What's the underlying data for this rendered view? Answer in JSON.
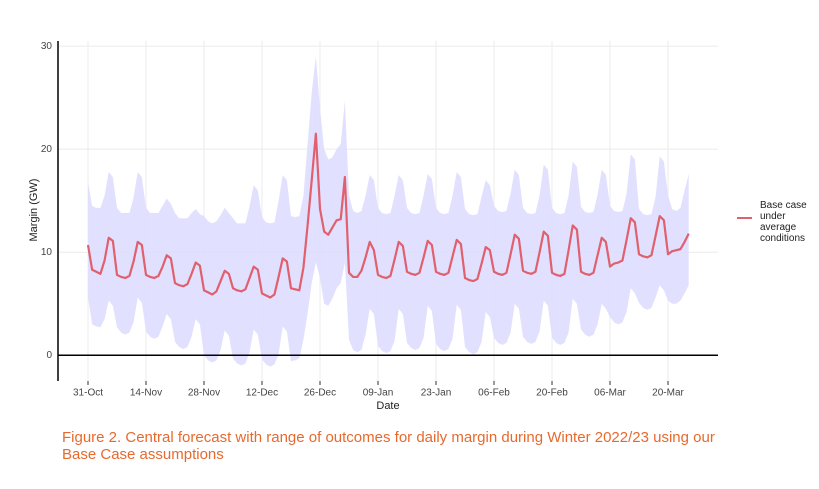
{
  "chart_data": {
    "type": "line",
    "x_label": "Date",
    "y_label": "Margin (GW)",
    "caption": "Figure 2. Central forecast with range of outcomes for daily margin during Winter 2022/23 using our Base Case assumptions",
    "x": [
      "31-Oct",
      "01-Nov",
      "02-Nov",
      "03-Nov",
      "04-Nov",
      "05-Nov",
      "06-Nov",
      "07-Nov",
      "08-Nov",
      "09-Nov",
      "10-Nov",
      "11-Nov",
      "12-Nov",
      "13-Nov",
      "14-Nov",
      "15-Nov",
      "16-Nov",
      "17-Nov",
      "18-Nov",
      "19-Nov",
      "20-Nov",
      "21-Nov",
      "22-Nov",
      "23-Nov",
      "24-Nov",
      "25-Nov",
      "26-Nov",
      "27-Nov",
      "28-Nov",
      "29-Nov",
      "30-Nov",
      "01-Dec",
      "02-Dec",
      "03-Dec",
      "04-Dec",
      "05-Dec",
      "06-Dec",
      "07-Dec",
      "08-Dec",
      "09-Dec",
      "10-Dec",
      "11-Dec",
      "12-Dec",
      "13-Dec",
      "14-Dec",
      "15-Dec",
      "16-Dec",
      "17-Dec",
      "18-Dec",
      "19-Dec",
      "20-Dec",
      "21-Dec",
      "22-Dec",
      "23-Dec",
      "24-Dec",
      "25-Dec",
      "26-Dec",
      "27-Dec",
      "28-Dec",
      "29-Dec",
      "30-Dec",
      "31-Dec",
      "01-Jan",
      "02-Jan",
      "03-Jan",
      "04-Jan",
      "05-Jan",
      "06-Jan",
      "07-Jan",
      "08-Jan",
      "09-Jan",
      "10-Jan",
      "11-Jan",
      "12-Jan",
      "13-Jan",
      "14-Jan",
      "15-Jan",
      "16-Jan",
      "17-Jan",
      "18-Jan",
      "19-Jan",
      "20-Jan",
      "21-Jan",
      "22-Jan",
      "23-Jan",
      "24-Jan",
      "25-Jan",
      "26-Jan",
      "27-Jan",
      "28-Jan",
      "29-Jan",
      "30-Jan",
      "31-Jan",
      "01-Feb",
      "02-Feb",
      "03-Feb",
      "04-Feb",
      "05-Feb",
      "06-Feb",
      "07-Feb",
      "08-Feb",
      "09-Feb",
      "10-Feb",
      "11-Feb",
      "12-Feb",
      "13-Feb",
      "14-Feb",
      "15-Feb",
      "16-Feb",
      "17-Feb",
      "18-Feb",
      "19-Feb",
      "20-Feb",
      "21-Feb",
      "22-Feb",
      "23-Feb",
      "24-Feb",
      "25-Feb",
      "26-Feb",
      "27-Feb",
      "28-Feb",
      "01-Mar",
      "02-Mar",
      "03-Mar",
      "04-Mar",
      "05-Mar",
      "06-Mar",
      "07-Mar",
      "08-Mar",
      "09-Mar",
      "10-Mar",
      "11-Mar",
      "12-Mar",
      "13-Mar",
      "14-Mar",
      "15-Mar",
      "16-Mar",
      "17-Mar",
      "18-Mar",
      "19-Mar",
      "20-Mar",
      "21-Mar",
      "22-Mar",
      "23-Mar",
      "24-Mar",
      "25-Mar"
    ],
    "series": [
      {
        "name": "Base case under average conditions",
        "color": "#e0606e",
        "values": [
          10.7,
          8.3,
          8.1,
          7.9,
          9.2,
          11.4,
          11.1,
          7.8,
          7.6,
          7.5,
          7.7,
          9.1,
          11.0,
          10.7,
          7.8,
          7.6,
          7.5,
          7.7,
          8.6,
          9.7,
          9.4,
          7.0,
          6.8,
          6.7,
          6.9,
          7.9,
          9.0,
          8.7,
          6.3,
          6.1,
          5.9,
          6.2,
          7.2,
          8.2,
          7.9,
          6.5,
          6.3,
          6.2,
          6.4,
          7.5,
          8.6,
          8.3,
          6.0,
          5.8,
          5.6,
          5.9,
          7.6,
          9.4,
          9.1,
          6.5,
          6.4,
          6.3,
          8.5,
          12.6,
          17.0,
          21.5,
          14.2,
          12.0,
          11.7,
          12.4,
          13.1,
          13.2,
          17.3,
          8.0,
          7.6,
          7.6,
          8.2,
          9.5,
          11.0,
          10.2,
          7.8,
          7.6,
          7.5,
          7.7,
          9.3,
          11.0,
          10.6,
          8.1,
          7.9,
          7.8,
          8.0,
          9.5,
          11.1,
          10.7,
          8.1,
          7.9,
          7.8,
          8.0,
          9.6,
          11.2,
          10.8,
          7.5,
          7.3,
          7.2,
          7.4,
          8.9,
          10.5,
          10.2,
          8.1,
          7.9,
          7.8,
          8.0,
          9.8,
          11.7,
          11.3,
          8.2,
          8.0,
          7.9,
          8.1,
          10.0,
          12.0,
          11.6,
          8.0,
          7.8,
          7.7,
          7.9,
          10.2,
          12.6,
          12.2,
          8.1,
          7.9,
          7.8,
          8.0,
          9.7,
          11.4,
          11.0,
          8.6,
          8.9,
          9.0,
          9.2,
          11.2,
          13.3,
          12.9,
          9.8,
          9.6,
          9.5,
          9.7,
          11.6,
          13.5,
          13.1,
          9.8,
          10.1,
          10.2,
          10.3,
          11.0,
          11.8
        ]
      }
    ],
    "range": {
      "color": "#dcdcff",
      "upper": [
        16.8,
        14.5,
        14.3,
        14.3,
        15.5,
        17.8,
        17.3,
        14.3,
        13.8,
        13.8,
        13.8,
        15.3,
        17.8,
        17.3,
        14.3,
        13.8,
        13.8,
        13.8,
        14.5,
        15.2,
        14.7,
        13.8,
        13.3,
        13.3,
        13.3,
        13.8,
        14.2,
        13.7,
        13.5,
        13.0,
        12.8,
        13.0,
        13.6,
        14.3,
        13.8,
        13.3,
        12.8,
        12.8,
        12.8,
        14.5,
        16.5,
        16.0,
        13.4,
        12.9,
        12.8,
        12.9,
        15.0,
        17.5,
        17.0,
        13.5,
        13.4,
        13.5,
        15.5,
        20.5,
        25.5,
        29.0,
        24.0,
        20.0,
        19.0,
        19.2,
        20.0,
        20.5,
        24.7,
        15.5,
        14.0,
        13.8,
        14.0,
        15.5,
        17.5,
        17.0,
        14.3,
        13.8,
        13.7,
        13.8,
        15.5,
        17.5,
        17.0,
        14.3,
        13.8,
        13.7,
        13.8,
        15.5,
        17.6,
        17.1,
        14.3,
        13.8,
        13.7,
        13.8,
        15.5,
        17.8,
        17.3,
        14.2,
        13.7,
        13.6,
        13.7,
        15.4,
        17.0,
        16.5,
        14.5,
        14.0,
        13.9,
        14.0,
        15.7,
        18.0,
        17.5,
        14.3,
        13.8,
        13.7,
        13.8,
        15.5,
        18.5,
        18.0,
        14.3,
        13.8,
        13.7,
        13.8,
        15.5,
        18.8,
        18.3,
        14.4,
        13.9,
        13.8,
        13.9,
        15.6,
        18.0,
        17.5,
        14.5,
        14.0,
        13.9,
        14.0,
        15.7,
        19.5,
        19.0,
        14.2,
        13.7,
        13.6,
        13.7,
        15.4,
        19.3,
        18.8,
        15.5,
        14.2,
        14.0,
        14.3,
        16.0,
        17.6
      ],
      "lower": [
        5.6,
        3.0,
        2.8,
        2.7,
        3.5,
        5.3,
        4.8,
        2.7,
        2.2,
        2.0,
        2.2,
        3.2,
        5.6,
        5.1,
        2.3,
        1.8,
        1.6,
        1.8,
        2.8,
        4.0,
        3.5,
        1.3,
        0.8,
        0.6,
        0.8,
        1.8,
        3.5,
        3.0,
        0,
        -0.5,
        -0.7,
        -0.5,
        0.5,
        2.4,
        1.9,
        -0.3,
        -0.8,
        -1.0,
        -0.8,
        0.3,
        2.5,
        2.0,
        -0.4,
        -0.9,
        -1.1,
        -0.9,
        0.1,
        2.8,
        2.3,
        -0.6,
        -0.5,
        -0.3,
        1.5,
        4.0,
        7.0,
        9.0,
        7.5,
        5.0,
        4.8,
        5.5,
        6.5,
        7.0,
        9.0,
        1.5,
        0.5,
        0.3,
        0.5,
        2.0,
        4.5,
        4.0,
        0.9,
        0.4,
        0.2,
        0.4,
        1.4,
        4.5,
        4.0,
        1.2,
        0.7,
        0.5,
        0.7,
        1.7,
        4.8,
        4.3,
        1.1,
        0.6,
        0.4,
        0.6,
        1.6,
        4.9,
        4.4,
        0.8,
        0.3,
        0.1,
        0.3,
        1.3,
        4.2,
        3.7,
        1.7,
        1.2,
        1.0,
        1.2,
        2.2,
        5.0,
        4.5,
        1.8,
        1.3,
        1.1,
        1.3,
        2.3,
        5.3,
        4.8,
        1.7,
        1.2,
        1.0,
        1.2,
        2.2,
        5.5,
        5.0,
        2.5,
        2.0,
        1.8,
        2.0,
        3.0,
        5.0,
        4.5,
        3.7,
        3.2,
        3.0,
        3.2,
        4.2,
        6.5,
        6.0,
        5.1,
        4.6,
        4.4,
        4.6,
        5.6,
        6.8,
        6.3,
        5.3,
        5.0,
        5.0,
        5.3,
        6.0,
        6.8
      ]
    },
    "xticks": [
      "31-Oct",
      "14-Nov",
      "28-Nov",
      "12-Dec",
      "26-Dec",
      "09-Jan",
      "23-Jan",
      "06-Feb",
      "20-Feb",
      "06-Mar",
      "20-Mar"
    ],
    "ylim": [
      -2.5,
      30.5
    ],
    "yticks": [
      0,
      10,
      20,
      30
    ],
    "grid": true
  }
}
